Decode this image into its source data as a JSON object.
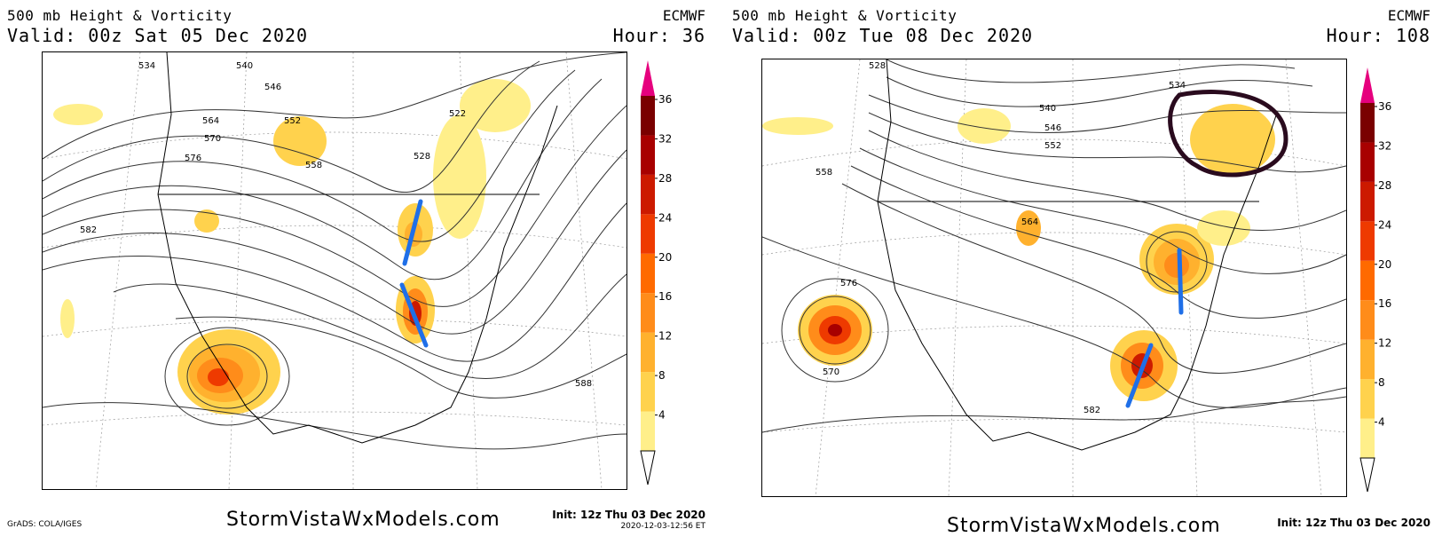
{
  "panels": [
    {
      "title": "500 mb Height & Vorticity",
      "valid": "Valid: 00z Sat 05 Dec 2020",
      "model": "ECMWF",
      "hour": "Hour: 36",
      "website": "StormVistaWxModels.com",
      "init": "Init: 12z Thu 03 Dec 2020",
      "stamp": "2020-12-03-12:56 ET",
      "credit": "GrADS: COLA/IGES",
      "contour_labels": [
        "534",
        "540",
        "546",
        "552",
        "558",
        "564",
        "570",
        "576",
        "582",
        "588",
        "522",
        "528"
      ],
      "annotations": [
        "blue trough-axis line north",
        "blue trough-axis line south"
      ]
    },
    {
      "title": "500 mb Height & Vorticity",
      "valid": "Valid: 00z Tue 08 Dec 2020",
      "model": "ECMWF",
      "hour": "Hour: 108",
      "website": "StormVistaWxModels.com",
      "init": "Init: 12z Thu 03 Dec 2020",
      "stamp": "",
      "credit": "",
      "contour_labels": [
        "528",
        "534",
        "540",
        "546",
        "552",
        "558",
        "564",
        "570",
        "576",
        "582"
      ],
      "annotations": [
        "blue trough-axis line mid-Atlantic",
        "blue trough-axis line Gulf",
        "dark purple circle north-east"
      ]
    }
  ],
  "colorbar": {
    "ticks": [
      "36",
      "32",
      "28",
      "24",
      "20",
      "16",
      "12",
      "8",
      "4"
    ],
    "colors": [
      "#ffef8a",
      "#ffd24d",
      "#ffb12e",
      "#ff8c1a",
      "#ff6a00",
      "#ee3a00",
      "#cc1a00",
      "#a80000",
      "#7a0000"
    ],
    "top_color": "#e6007e"
  },
  "colors": {
    "trough_line": "#1f6fe8",
    "circle": "#2a0b1e",
    "contour": "#333333"
  }
}
